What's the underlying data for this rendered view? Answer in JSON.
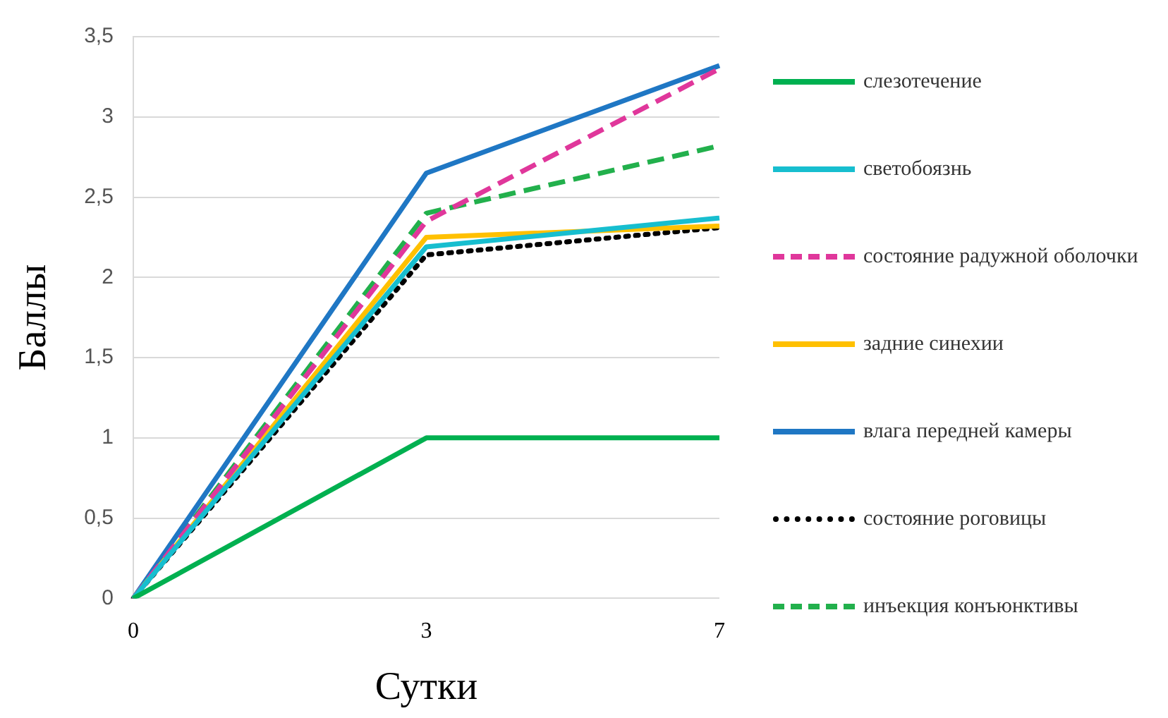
{
  "chart_data": {
    "type": "line",
    "xlabel": "Сутки",
    "ylabel": "Баллы",
    "categories": [
      "0",
      "3",
      "7"
    ],
    "ylim": [
      0,
      3.5
    ],
    "yticks": [
      0,
      {
        "value": 0.5,
        "label": "0,5"
      },
      1,
      {
        "value": 1.5,
        "label": "1,5"
      },
      2,
      {
        "value": 2.5,
        "label": "2,5"
      },
      3,
      {
        "value": 3.5,
        "label": "3,5"
      }
    ],
    "grid": "y",
    "legend": "right",
    "marker": "none",
    "series": [
      {
        "name": "слезотечение",
        "color": "#00b050",
        "values": [
          0,
          1,
          1
        ],
        "line_style": "solid"
      },
      {
        "name": "светобоязнь",
        "color": "#17becf",
        "values": [
          0,
          2.19,
          2.37
        ],
        "line_style": "solid"
      },
      {
        "name": "состояние радужной оболочки",
        "color": "#e0379b",
        "values": [
          0,
          2.35,
          3.3
        ],
        "line_style": "dashed"
      },
      {
        "name": "задние синехии",
        "color": "#ffc000",
        "values": [
          0,
          2.25,
          2.32
        ],
        "line_style": "solid"
      },
      {
        "name": "влага передней камеры",
        "color": "#1f77c4",
        "values": [
          0,
          2.65,
          3.32
        ],
        "line_style": "solid"
      },
      {
        "name": "состояние роговицы",
        "color": "#000000",
        "values": [
          0,
          2.14,
          2.31
        ],
        "line_style": "dotted"
      },
      {
        "name": "инъекция конъюнктивы",
        "color": "#22b04c",
        "values": [
          0,
          2.4,
          2.82
        ],
        "line_style": "dashed"
      }
    ]
  }
}
